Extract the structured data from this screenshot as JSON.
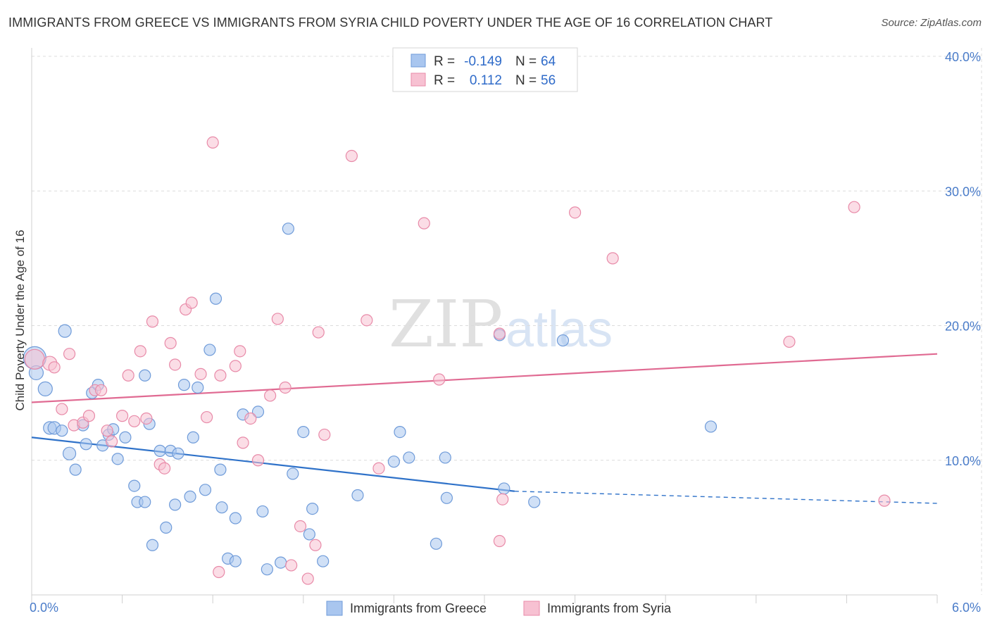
{
  "title": "IMMIGRANTS FROM GREECE VS IMMIGRANTS FROM SYRIA CHILD POVERTY UNDER THE AGE OF 16 CORRELATION CHART",
  "source": "Source: ZipAtlas.com",
  "watermark": {
    "zip": "ZIP",
    "atlas": "atlas"
  },
  "legend": {
    "r_label": "R =",
    "n_label": "N =",
    "entries": [
      {
        "r": "-0.149",
        "n": "64",
        "color": "#a9c6ef"
      },
      {
        "r": "0.112",
        "n": "56",
        "color": "#f5b3c8"
      }
    ]
  },
  "colors": {
    "greece_fill": "#a9c6ef",
    "greece_stroke": "#6f9bd9",
    "greece_line": "#2f72c9",
    "syria_fill": "#f7c1d2",
    "syria_stroke": "#e88aa8",
    "syria_line": "#e06a92",
    "grid": "#dcdcdc",
    "tick_text": "#4a7cc9"
  },
  "chart_data": {
    "type": "scatter",
    "title": "IMMIGRANTS FROM GREECE VS IMMIGRANTS FROM SYRIA CHILD POVERTY UNDER THE AGE OF 16 CORRELATION CHART",
    "xlabel": "",
    "ylabel": "Child Poverty Under the Age of 16",
    "xlim": [
      0,
      6.0
    ],
    "ylim": [
      0,
      40.0
    ],
    "x_tick_labels": [
      "0.0%",
      "6.0%"
    ],
    "y_ticks": [
      10,
      20,
      30,
      40
    ],
    "y_tick_labels": [
      "10.0%",
      "20.0%",
      "30.0%",
      "40.0%"
    ],
    "grid": true,
    "legend_placement": "top-center",
    "series": [
      {
        "name": "Immigrants from Greece",
        "r": -0.149,
        "n": 64,
        "trend": {
          "x": [
            0.0,
            3.2
          ],
          "y": [
            11.7,
            7.7
          ],
          "dashed_to": [
            6.0,
            6.8
          ]
        },
        "points": [
          [
            0.02,
            17.6,
            16
          ],
          [
            0.03,
            16.5,
            10
          ],
          [
            0.09,
            15.3,
            10
          ],
          [
            0.12,
            12.4,
            9
          ],
          [
            0.15,
            12.4,
            9
          ],
          [
            0.2,
            12.2,
            8
          ],
          [
            0.22,
            19.6,
            9
          ],
          [
            0.25,
            10.5,
            9
          ],
          [
            0.29,
            9.3,
            8
          ],
          [
            0.34,
            12.6,
            8
          ],
          [
            0.36,
            11.2,
            8
          ],
          [
            0.4,
            15.0,
            8
          ],
          [
            0.44,
            15.6,
            8
          ],
          [
            0.47,
            11.1,
            8
          ],
          [
            0.51,
            11.9,
            8
          ],
          [
            0.54,
            12.3,
            8
          ],
          [
            0.57,
            10.1,
            8
          ],
          [
            0.62,
            11.7,
            8
          ],
          [
            0.68,
            8.1,
            8
          ],
          [
            0.7,
            6.9,
            8
          ],
          [
            0.75,
            6.9,
            8
          ],
          [
            0.75,
            16.3,
            8
          ],
          [
            0.78,
            12.7,
            8
          ],
          [
            0.8,
            3.7,
            8
          ],
          [
            0.85,
            10.7,
            8
          ],
          [
            0.89,
            5.0,
            8
          ],
          [
            0.92,
            10.7,
            8
          ],
          [
            0.95,
            6.7,
            8
          ],
          [
            0.97,
            10.5,
            8
          ],
          [
            1.01,
            15.6,
            8
          ],
          [
            1.05,
            7.3,
            8
          ],
          [
            1.07,
            11.7,
            8
          ],
          [
            1.1,
            15.4,
            8
          ],
          [
            1.15,
            7.8,
            8
          ],
          [
            1.18,
            18.2,
            8
          ],
          [
            1.22,
            22.0,
            8
          ],
          [
            1.25,
            9.3,
            8
          ],
          [
            1.26,
            6.5,
            8
          ],
          [
            1.3,
            2.7,
            8
          ],
          [
            1.35,
            5.7,
            8
          ],
          [
            1.35,
            2.5,
            8
          ],
          [
            1.4,
            13.4,
            8
          ],
          [
            1.5,
            13.6,
            8
          ],
          [
            1.53,
            6.2,
            8
          ],
          [
            1.56,
            1.9,
            8
          ],
          [
            1.65,
            2.4,
            8
          ],
          [
            1.7,
            27.2,
            8
          ],
          [
            1.73,
            9.0,
            8
          ],
          [
            1.8,
            12.1,
            8
          ],
          [
            1.84,
            4.5,
            8
          ],
          [
            1.86,
            6.4,
            8
          ],
          [
            1.93,
            2.5,
            8
          ],
          [
            2.16,
            7.4,
            8
          ],
          [
            2.4,
            9.9,
            8
          ],
          [
            2.44,
            12.1,
            8
          ],
          [
            2.5,
            10.2,
            8
          ],
          [
            2.68,
            3.8,
            8
          ],
          [
            2.74,
            10.2,
            8
          ],
          [
            2.75,
            7.2,
            8
          ],
          [
            3.1,
            19.3,
            8
          ],
          [
            3.13,
            7.9,
            8
          ],
          [
            3.33,
            6.9,
            8
          ],
          [
            3.52,
            18.9,
            8
          ],
          [
            4.5,
            12.5,
            8
          ]
        ]
      },
      {
        "name": "Immigrants from Syria",
        "r": 0.112,
        "n": 56,
        "trend": {
          "x": [
            0.0,
            6.0
          ],
          "y": [
            14.3,
            17.9
          ]
        },
        "points": [
          [
            0.02,
            17.5,
            14
          ],
          [
            0.12,
            17.2,
            10
          ],
          [
            0.15,
            16.9,
            8
          ],
          [
            0.2,
            13.8,
            8
          ],
          [
            0.25,
            17.9,
            8
          ],
          [
            0.28,
            12.6,
            8
          ],
          [
            0.34,
            12.8,
            8
          ],
          [
            0.38,
            13.3,
            8
          ],
          [
            0.42,
            15.2,
            8
          ],
          [
            0.46,
            15.2,
            8
          ],
          [
            0.5,
            12.2,
            8
          ],
          [
            0.53,
            11.4,
            8
          ],
          [
            0.6,
            13.3,
            8
          ],
          [
            0.64,
            16.3,
            8
          ],
          [
            0.68,
            12.9,
            8
          ],
          [
            0.72,
            18.1,
            8
          ],
          [
            0.76,
            13.1,
            8
          ],
          [
            0.8,
            20.3,
            8
          ],
          [
            0.85,
            9.7,
            8
          ],
          [
            0.88,
            9.4,
            8
          ],
          [
            0.92,
            18.7,
            8
          ],
          [
            0.95,
            17.1,
            8
          ],
          [
            1.02,
            21.2,
            8
          ],
          [
            1.06,
            21.7,
            8
          ],
          [
            1.12,
            16.4,
            8
          ],
          [
            1.16,
            13.2,
            8
          ],
          [
            1.2,
            33.6,
            8
          ],
          [
            1.25,
            16.3,
            8
          ],
          [
            1.35,
            17.0,
            8
          ],
          [
            1.38,
            18.1,
            8
          ],
          [
            1.4,
            11.3,
            8
          ],
          [
            1.45,
            13.1,
            8
          ],
          [
            1.5,
            10.0,
            8
          ],
          [
            1.58,
            14.8,
            8
          ],
          [
            1.63,
            20.5,
            8
          ],
          [
            1.68,
            15.4,
            8
          ],
          [
            1.72,
            2.2,
            8
          ],
          [
            1.78,
            5.1,
            8
          ],
          [
            1.83,
            1.2,
            8
          ],
          [
            1.88,
            3.7,
            8
          ],
          [
            1.9,
            19.5,
            8
          ],
          [
            1.94,
            11.9,
            8
          ],
          [
            2.12,
            32.6,
            8
          ],
          [
            2.22,
            20.4,
            8
          ],
          [
            2.3,
            9.4,
            8
          ],
          [
            2.6,
            27.6,
            8
          ],
          [
            2.7,
            16.0,
            8
          ],
          [
            3.1,
            19.4,
            8
          ],
          [
            3.1,
            4.0,
            8
          ],
          [
            3.12,
            7.1,
            8
          ],
          [
            3.6,
            28.4,
            8
          ],
          [
            3.85,
            25.0,
            8
          ],
          [
            5.02,
            18.8,
            8
          ],
          [
            5.45,
            28.8,
            8
          ],
          [
            5.65,
            7.0,
            8
          ],
          [
            1.24,
            1.7,
            8
          ]
        ]
      }
    ]
  },
  "bottom_legend": [
    {
      "label": "Immigrants from Greece"
    },
    {
      "label": "Immigrants from Syria"
    }
  ]
}
